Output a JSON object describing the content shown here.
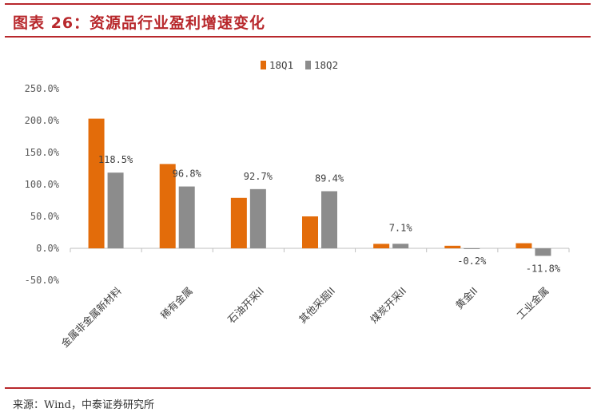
{
  "header": {
    "title": "图表 26：资源品行业盈利增速变化"
  },
  "footer": {
    "source": "来源：Wind，中泰证券研究所"
  },
  "colors": {
    "accent": "#b8282c",
    "series_18Q1": "#e36c0a",
    "series_18Q2": "#8c8c8c"
  },
  "chart_data": {
    "type": "bar",
    "title": "",
    "xlabel": "",
    "ylabel": "",
    "categories": [
      "金属非金属新材料",
      "稀有金属",
      "石油开采II",
      "其他采掘II",
      "煤炭开采II",
      "黄金II",
      "工业金属"
    ],
    "series": [
      {
        "name": "18Q1",
        "values": [
          203,
          132,
          79,
          50,
          7,
          4,
          8
        ]
      },
      {
        "name": "18Q2",
        "values": [
          118.5,
          96.8,
          92.7,
          89.4,
          7.1,
          -0.2,
          -11.8
        ]
      }
    ],
    "data_labels": [
      "118.5%",
      "96.8%",
      "92.7%",
      "89.4%",
      "7.1%",
      "-0.2%",
      "-11.8%"
    ],
    "y_ticks": [
      "250.0%",
      "200.0%",
      "150.0%",
      "100.0%",
      "50.0%",
      "0.0%",
      "-50.0%"
    ],
    "ylim": [
      -50,
      250
    ],
    "ytick_step": 50,
    "legend_position": "top-center",
    "grid": false
  }
}
